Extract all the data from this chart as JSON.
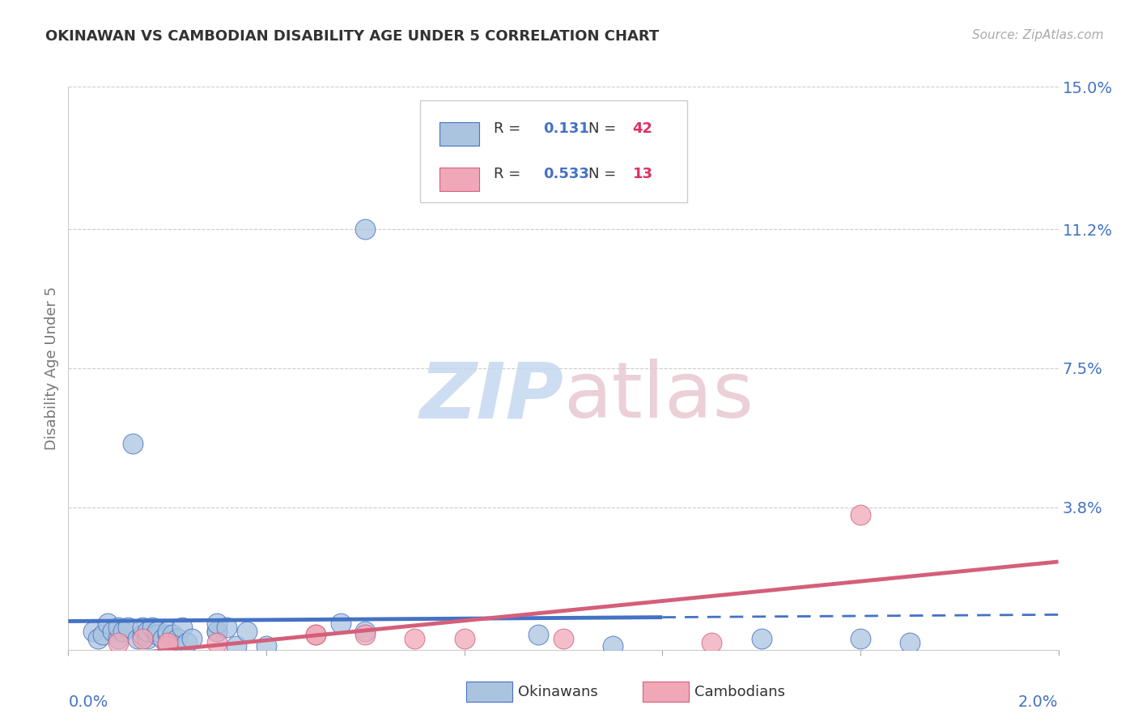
{
  "title": "OKINAWAN VS CAMBODIAN DISABILITY AGE UNDER 5 CORRELATION CHART",
  "source": "Source: ZipAtlas.com",
  "ylabel": "Disability Age Under 5",
  "xlim": [
    0.0,
    0.02
  ],
  "ylim": [
    0.0,
    0.15
  ],
  "yticks": [
    0.0,
    0.038,
    0.075,
    0.112,
    0.15
  ],
  "ytick_labels": [
    "",
    "3.8%",
    "7.5%",
    "11.2%",
    "15.0%"
  ],
  "xticks": [
    0.0,
    0.004,
    0.008,
    0.012,
    0.016,
    0.02
  ],
  "grid_color": "#cccccc",
  "background_color": "#ffffff",
  "okinawan_color": "#aac4e0",
  "cambodian_color": "#f0a8b8",
  "okinawan_line_color": "#4472c4",
  "cambodian_line_color": "#d45f7a",
  "legend_R_okinawan": "0.131",
  "legend_N_okinawan": "42",
  "legend_R_cambodian": "0.533",
  "legend_N_cambodian": "13",
  "okinawan_x": [
    0.0005,
    0.0006,
    0.0007,
    0.0008,
    0.0009,
    0.001,
    0.001,
    0.0011,
    0.0012,
    0.0013,
    0.0014,
    0.0015,
    0.0015,
    0.0016,
    0.0016,
    0.0017,
    0.0018,
    0.0018,
    0.0019,
    0.002,
    0.002,
    0.002,
    0.0021,
    0.0022,
    0.0023,
    0.0024,
    0.0025,
    0.003,
    0.003,
    0.003,
    0.0032,
    0.0034,
    0.0036,
    0.004,
    0.0055,
    0.006,
    0.006,
    0.0095,
    0.011,
    0.014,
    0.016,
    0.017
  ],
  "okinawan_y": [
    0.005,
    0.003,
    0.004,
    0.007,
    0.005,
    0.003,
    0.006,
    0.005,
    0.006,
    0.055,
    0.003,
    0.004,
    0.006,
    0.003,
    0.005,
    0.006,
    0.004,
    0.005,
    0.003,
    0.001,
    0.004,
    0.005,
    0.004,
    0.003,
    0.006,
    0.002,
    0.003,
    0.005,
    0.005,
    0.007,
    0.006,
    0.001,
    0.005,
    0.001,
    0.007,
    0.112,
    0.005,
    0.004,
    0.001,
    0.003,
    0.003,
    0.002
  ],
  "cambodian_x": [
    0.001,
    0.0015,
    0.002,
    0.002,
    0.003,
    0.005,
    0.005,
    0.006,
    0.007,
    0.008,
    0.01,
    0.013,
    0.016
  ],
  "cambodian_y": [
    0.002,
    0.003,
    0.001,
    0.002,
    0.002,
    0.004,
    0.004,
    0.004,
    0.003,
    0.003,
    0.003,
    0.002,
    0.036
  ],
  "watermark_zip_color": "#c5d8f0",
  "watermark_atlas_color": "#e8c8d0",
  "line_solid_end_x": 0.012,
  "line_dash_start_x": 0.012
}
